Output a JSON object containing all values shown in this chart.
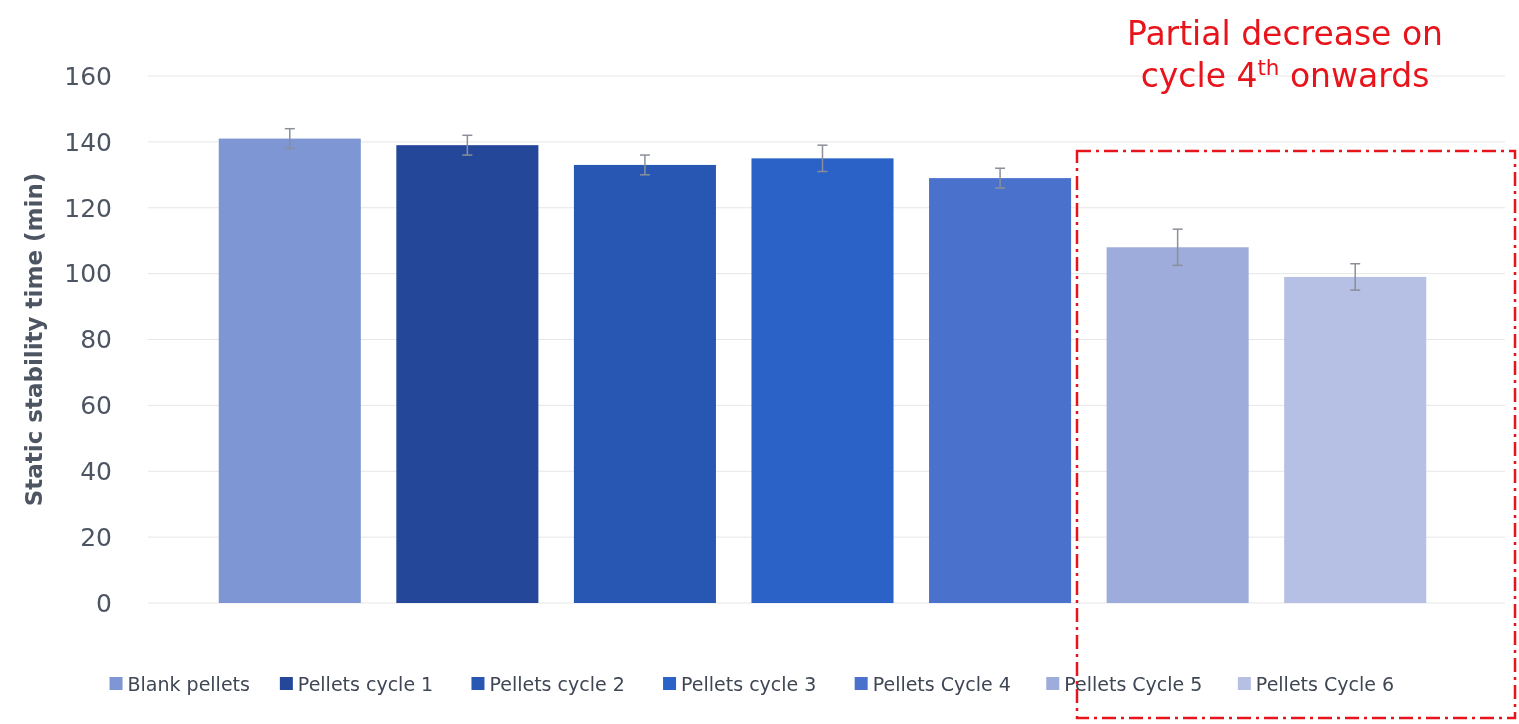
{
  "chart_data": {
    "type": "bar",
    "ylabel": "Static stability time (min)",
    "categories": [
      null,
      null,
      null,
      null,
      null,
      null,
      null
    ],
    "ylim": [
      0,
      160
    ],
    "yticks": [
      0,
      20,
      40,
      60,
      80,
      100,
      120,
      140,
      160
    ],
    "grid": "y",
    "legend": "bottom",
    "annotations": [
      "Partial decrease  on\ncycle 4$^{th}$ onwards"
    ],
    "series": [
      {
        "name": "Blank pellets",
        "color": "#7f96d4",
        "values": [
          141,
          null,
          null,
          null,
          null,
          null,
          null
        ],
        "errors": [
          3,
          null,
          null,
          null,
          null,
          null,
          null
        ]
      },
      {
        "name": "Pellets cycle 1",
        "color": "#24479a",
        "values": [
          null,
          139,
          null,
          null,
          null,
          null,
          null
        ],
        "errors": [
          null,
          3,
          null,
          null,
          null,
          null,
          null
        ]
      },
      {
        "name": "Pellets cycle 2",
        "color": "#2857b3",
        "values": [
          null,
          null,
          133,
          null,
          null,
          null,
          null
        ],
        "errors": [
          null,
          null,
          3,
          null,
          null,
          null,
          null
        ]
      },
      {
        "name": "Pellets cycle 3",
        "color": "#2a62c8",
        "values": [
          null,
          null,
          null,
          135,
          null,
          null,
          null
        ],
        "errors": [
          null,
          null,
          null,
          4,
          null,
          null,
          null
        ]
      },
      {
        "name": "Pellets Cycle 4",
        "color": "#4a72cc",
        "values": [
          null,
          null,
          null,
          null,
          129,
          null,
          null
        ],
        "errors": [
          null,
          null,
          null,
          null,
          3,
          null,
          null
        ]
      },
      {
        "name": "Pellets Cycle 5",
        "color": "#9eacdc",
        "values": [
          null,
          null,
          null,
          null,
          null,
          108,
          null
        ],
        "errors": [
          null,
          null,
          null,
          null,
          null,
          5.5,
          null
        ]
      },
      {
        "name": "Pellets Cycle 6",
        "color": "#b6c0e4",
        "values": [
          null,
          null,
          null,
          null,
          null,
          null,
          99
        ],
        "errors": [
          null,
          null,
          null,
          null,
          null,
          null,
          4
        ]
      }
    ]
  }
}
